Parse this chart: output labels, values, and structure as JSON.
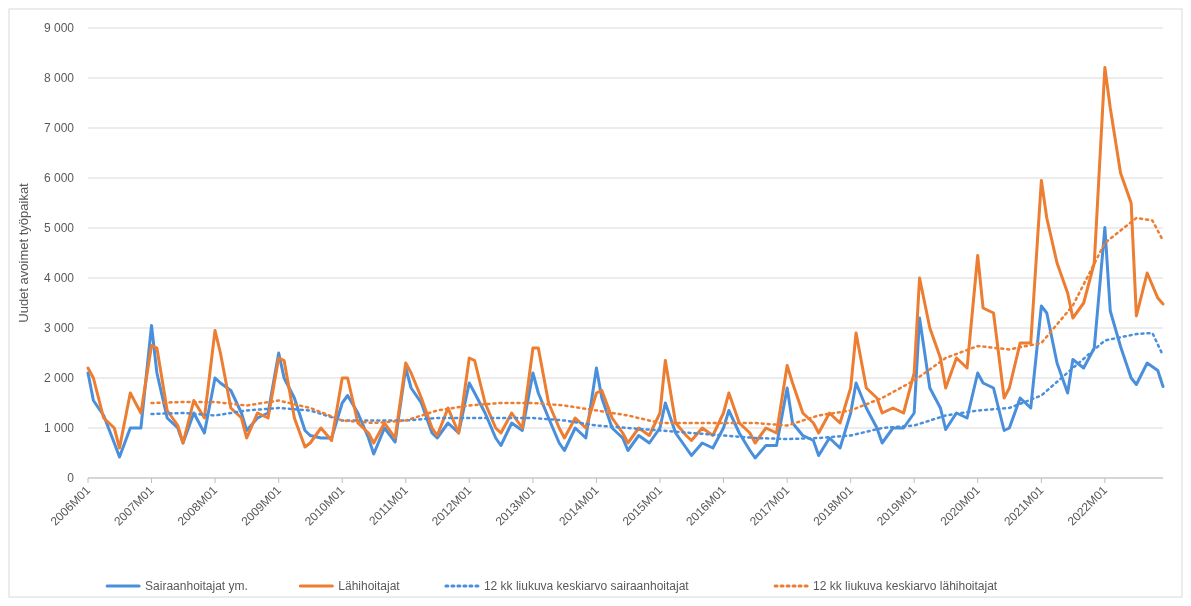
{
  "chart_data": {
    "type": "line",
    "ylabel": "Uudet avoimet työpaikat",
    "x": [
      "2006-01",
      "2006-02",
      "2006-04",
      "2006-06",
      "2006-07",
      "2006-09",
      "2006-11",
      "2007-01",
      "2007-02",
      "2007-04",
      "2007-06",
      "2007-07",
      "2007-09",
      "2007-11",
      "2008-01",
      "2008-02",
      "2008-04",
      "2008-06",
      "2008-07",
      "2008-09",
      "2008-11",
      "2009-01",
      "2009-02",
      "2009-04",
      "2009-06",
      "2009-07",
      "2009-09",
      "2009-11",
      "2010-01",
      "2010-02",
      "2010-04",
      "2010-06",
      "2010-07",
      "2010-09",
      "2010-11",
      "2011-01",
      "2011-02",
      "2011-04",
      "2011-06",
      "2011-07",
      "2011-09",
      "2011-11",
      "2012-01",
      "2012-02",
      "2012-04",
      "2012-06",
      "2012-07",
      "2012-09",
      "2012-11",
      "2013-01",
      "2013-02",
      "2013-04",
      "2013-06",
      "2013-07",
      "2013-09",
      "2013-11",
      "2014-01",
      "2014-02",
      "2014-04",
      "2014-06",
      "2014-07",
      "2014-09",
      "2014-11",
      "2015-01",
      "2015-02",
      "2015-04",
      "2015-06",
      "2015-07",
      "2015-09",
      "2015-11",
      "2016-01",
      "2016-02",
      "2016-04",
      "2016-06",
      "2016-07",
      "2016-09",
      "2016-11",
      "2017-01",
      "2017-02",
      "2017-04",
      "2017-06",
      "2017-07",
      "2017-09",
      "2017-11",
      "2018-01",
      "2018-02",
      "2018-04",
      "2018-06",
      "2018-07",
      "2018-09",
      "2018-11",
      "2019-01",
      "2019-02",
      "2019-04",
      "2019-06",
      "2019-07",
      "2019-09",
      "2019-11",
      "2020-01",
      "2020-02",
      "2020-04",
      "2020-06",
      "2020-07",
      "2020-09",
      "2020-11",
      "2021-01",
      "2021-02",
      "2021-04",
      "2021-06",
      "2021-07",
      "2021-09",
      "2021-11",
      "2022-01",
      "2022-02",
      "2022-04",
      "2022-06",
      "2022-07",
      "2022-09",
      "2022-11",
      "2022-12"
    ],
    "series": [
      {
        "name": "Sairaanhoitajat ym.",
        "color": "#4a8fdc",
        "values": [
          2100,
          1550,
          1250,
          700,
          420,
          1000,
          1000,
          3050,
          2100,
          1200,
          1000,
          700,
          1300,
          900,
          2000,
          1900,
          1750,
          1300,
          950,
          1200,
          1300,
          2500,
          2000,
          1600,
          950,
          850,
          800,
          800,
          1500,
          1650,
          1300,
          800,
          480,
          1000,
          720,
          2200,
          1800,
          1500,
          900,
          800,
          1100,
          900,
          1900,
          1700,
          1300,
          800,
          650,
          1100,
          950,
          2100,
          1700,
          1200,
          700,
          550,
          1000,
          800,
          2200,
          1600,
          1000,
          800,
          550,
          850,
          700,
          1000,
          1500,
          900,
          600,
          450,
          700,
          600,
          1000,
          1350,
          900,
          550,
          400,
          650,
          650,
          1800,
          1100,
          850,
          750,
          450,
          800,
          600,
          1300,
          1900,
          1400,
          1000,
          700,
          1000,
          1000,
          1300,
          3200,
          1800,
          1400,
          970,
          1300,
          1200,
          2100,
          1900,
          1800,
          950,
          1000,
          1600,
          1400,
          3440,
          3300,
          2300,
          1700,
          2370,
          2200,
          2600,
          5010,
          3340,
          2630,
          2000,
          1870,
          2300,
          2150,
          1830
        ]
      },
      {
        "name": "Lähihoitajat",
        "color": "#ed7d31",
        "values": [
          2200,
          2000,
          1200,
          1000,
          600,
          1700,
          1300,
          2650,
          2600,
          1350,
          1050,
          700,
          1550,
          1200,
          2950,
          2500,
          1400,
          1200,
          800,
          1300,
          1200,
          2400,
          2350,
          1200,
          620,
          700,
          1000,
          750,
          2000,
          2000,
          1100,
          900,
          700,
          1100,
          800,
          2300,
          2100,
          1600,
          1000,
          850,
          1400,
          900,
          2400,
          2350,
          1500,
          1000,
          900,
          1300,
          1000,
          2600,
          2600,
          1500,
          1000,
          800,
          1200,
          1000,
          1700,
          1750,
          1200,
          900,
          700,
          1000,
          850,
          1300,
          2350,
          1100,
          850,
          750,
          1000,
          850,
          1300,
          1700,
          1100,
          900,
          700,
          1000,
          900,
          2250,
          1900,
          1300,
          1100,
          900,
          1300,
          1100,
          1800,
          2900,
          1800,
          1600,
          1300,
          1400,
          1300,
          2100,
          4000,
          3000,
          2400,
          1800,
          2400,
          2200,
          4450,
          3400,
          3300,
          1600,
          1800,
          2700,
          2700,
          5950,
          5200,
          4300,
          3700,
          3200,
          3500,
          4300,
          8210,
          7400,
          6100,
          5500,
          3240,
          4100,
          3600,
          3480
        ]
      },
      {
        "name": "12 kk liukuva keskiarvo sairaanhoitajat",
        "color": "#4a8fdc",
        "line_style": "dotted",
        "x": [
          "2007-01",
          "2007-07",
          "2008-01",
          "2008-07",
          "2009-01",
          "2009-07",
          "2010-01",
          "2010-07",
          "2011-01",
          "2011-07",
          "2012-01",
          "2012-07",
          "2013-01",
          "2013-07",
          "2014-01",
          "2014-07",
          "2015-01",
          "2015-07",
          "2016-01",
          "2016-07",
          "2017-01",
          "2017-07",
          "2018-01",
          "2018-07",
          "2019-01",
          "2019-07",
          "2020-01",
          "2020-07",
          "2021-01",
          "2021-07",
          "2022-01",
          "2022-07",
          "2022-10",
          "2022-12"
        ],
        "values": [
          1280,
          1300,
          1250,
          1350,
          1400,
          1350,
          1150,
          1150,
          1150,
          1200,
          1200,
          1200,
          1200,
          1150,
          1050,
          1000,
          950,
          900,
          850,
          800,
          780,
          800,
          850,
          1000,
          1050,
          1250,
          1350,
          1400,
          1650,
          2200,
          2750,
          2880,
          2900,
          2450
        ]
      },
      {
        "name": "12 kk liukuva keskiarvo lähihoitajat",
        "color": "#ed7d31",
        "line_style": "dotted",
        "x": [
          "2007-01",
          "2007-07",
          "2008-01",
          "2008-07",
          "2009-01",
          "2009-07",
          "2010-01",
          "2010-07",
          "2011-01",
          "2011-07",
          "2012-01",
          "2012-07",
          "2013-01",
          "2013-07",
          "2014-01",
          "2014-07",
          "2015-01",
          "2015-07",
          "2016-01",
          "2016-07",
          "2017-01",
          "2017-07",
          "2018-01",
          "2018-07",
          "2019-01",
          "2019-07",
          "2020-01",
          "2020-07",
          "2021-01",
          "2021-07",
          "2022-01",
          "2022-07",
          "2022-10",
          "2022-12"
        ],
        "values": [
          1500,
          1520,
          1520,
          1450,
          1550,
          1400,
          1150,
          1100,
          1150,
          1350,
          1450,
          1500,
          1500,
          1450,
          1350,
          1250,
          1100,
          1100,
          1100,
          1100,
          1050,
          1250,
          1350,
          1600,
          1950,
          2400,
          2640,
          2570,
          2700,
          3450,
          4700,
          5200,
          5150,
          4750
        ]
      }
    ],
    "xlim": [
      "2006-01",
      "2022-12"
    ],
    "xticks": [
      {
        "value": "2006-01",
        "label": "2006M01"
      },
      {
        "value": "2007-01",
        "label": "2007M01"
      },
      {
        "value": "2008-01",
        "label": "2008M01"
      },
      {
        "value": "2009-01",
        "label": "2009M01"
      },
      {
        "value": "2010-01",
        "label": "2010M01"
      },
      {
        "value": "2011-01",
        "label": "2011M01"
      },
      {
        "value": "2012-01",
        "label": "2012M01"
      },
      {
        "value": "2013-01",
        "label": "2013M01"
      },
      {
        "value": "2014-01",
        "label": "2014M01"
      },
      {
        "value": "2015-01",
        "label": "2015M01"
      },
      {
        "value": "2016-01",
        "label": "2016M01"
      },
      {
        "value": "2017-01",
        "label": "2017M01"
      },
      {
        "value": "2018-01",
        "label": "2018M01"
      },
      {
        "value": "2019-01",
        "label": "2019M01"
      },
      {
        "value": "2020-01",
        "label": "2020M01"
      },
      {
        "value": "2021-01",
        "label": "2021M01"
      },
      {
        "value": "2022-01",
        "label": "2022M01"
      }
    ],
    "ylim": [
      0,
      9000
    ],
    "yticks": [
      0,
      {
        "value": 1000,
        "label": "1 000"
      },
      {
        "value": 2000,
        "label": "2 000"
      },
      {
        "value": 3000,
        "label": "3 000"
      },
      {
        "value": 4000,
        "label": "4 000"
      },
      {
        "value": 5000,
        "label": "5 000"
      },
      {
        "value": 6000,
        "label": "6 000"
      },
      {
        "value": 7000,
        "label": "7 000"
      },
      {
        "value": 8000,
        "label": "8 000"
      },
      {
        "value": 9000,
        "label": "9 000"
      }
    ],
    "grid": "y",
    "legend": "bottom"
  }
}
